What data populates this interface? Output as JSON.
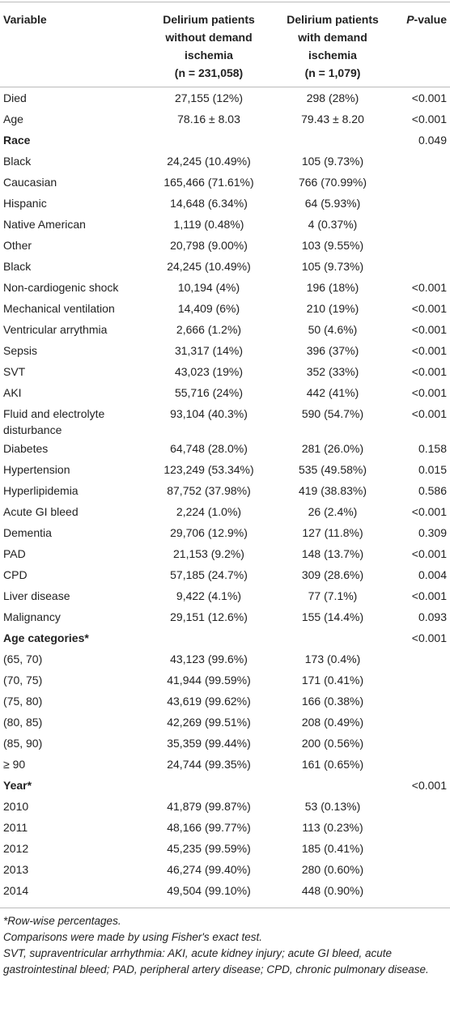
{
  "table": {
    "columns": [
      [
        "Variable"
      ],
      [
        "Delirium patients",
        "without demand",
        "ischemia",
        "(n = 231,058)"
      ],
      [
        "Delirium patients",
        "with demand",
        "ischemia",
        "(n = 1,079)"
      ],
      [
        "P-value"
      ]
    ],
    "rows": [
      {
        "variable": "Died",
        "without": "27,155 (12%)",
        "with": "298 (28%)",
        "p_value": "<0.001"
      },
      {
        "variable": "Age",
        "without": "78.16 ± 8.03",
        "with": "79.43 ± 8.20",
        "p_value": "<0.001"
      },
      {
        "heading": "Race",
        "p_value": "0.049"
      },
      {
        "variable": "Black",
        "without": "24,245 (10.49%)",
        "with": "105 (9.73%)"
      },
      {
        "variable": "Caucasian",
        "without": "165,466 (71.61%)",
        "with": "766 (70.99%)"
      },
      {
        "variable": "Hispanic",
        "without": "14,648 (6.34%)",
        "with": "64 (5.93%)"
      },
      {
        "variable": "Native American",
        "without": "1,119 (0.48%)",
        "with": "4 (0.37%)"
      },
      {
        "variable": "Other",
        "without": "20,798 (9.00%)",
        "with": "103 (9.55%)"
      },
      {
        "variable": "Black",
        "without": "24,245 (10.49%)",
        "with": "105 (9.73%)"
      },
      {
        "variable": "Non-cardiogenic shock",
        "without": "10,194 (4%)",
        "with": "196 (18%)",
        "p_value": "<0.001"
      },
      {
        "variable": "Mechanical ventilation",
        "without": "14,409 (6%)",
        "with": "210 (19%)",
        "p_value": "<0.001"
      },
      {
        "variable": "Ventricular arrythmia",
        "without": "2,666 (1.2%)",
        "with": "50 (4.6%)",
        "p_value": "<0.001"
      },
      {
        "variable": "Sepsis",
        "without": "31,317 (14%)",
        "with": "396 (37%)",
        "p_value": "<0.001"
      },
      {
        "variable": "SVT",
        "without": "43,023 (19%)",
        "with": "352 (33%)",
        "p_value": "<0.001"
      },
      {
        "variable": "AKI",
        "without": "55,716 (24%)",
        "with": "442 (41%)",
        "p_value": "<0.001"
      },
      {
        "variable": "Fluid and electrolyte disturbance",
        "without": "93,104 (40.3%)",
        "with": "590 (54.7%)",
        "p_value": "<0.001"
      },
      {
        "variable": "Diabetes",
        "without": "64,748 (28.0%)",
        "with": "281 (26.0%)",
        "p_value": "0.158"
      },
      {
        "variable": "Hypertension",
        "without": "123,249 (53.34%)",
        "with": "535 (49.58%)",
        "p_value": "0.015"
      },
      {
        "variable": "Hyperlipidemia",
        "without": "87,752 (37.98%)",
        "with": "419 (38.83%)",
        "p_value": "0.586"
      },
      {
        "variable": "Acute GI bleed",
        "without": "2,224 (1.0%)",
        "with": "26 (2.4%)",
        "p_value": "<0.001"
      },
      {
        "variable": "Dementia",
        "without": "29,706 (12.9%)",
        "with": "127 (11.8%)",
        "p_value": "0.309"
      },
      {
        "variable": "PAD",
        "without": "21,153 (9.2%)",
        "with": "148 (13.7%)",
        "p_value": "<0.001"
      },
      {
        "variable": "CPD",
        "without": "57,185 (24.7%)",
        "with": "309 (28.6%)",
        "p_value": "0.004"
      },
      {
        "variable": "Liver disease",
        "without": "9,422 (4.1%)",
        "with": "77 (7.1%)",
        "p_value": "<0.001"
      },
      {
        "variable": "Malignancy",
        "without": "29,151 (12.6%)",
        "with": "155 (14.4%)",
        "p_value": "0.093"
      },
      {
        "heading": "Age categories*",
        "p_value": "<0.001"
      },
      {
        "variable": "(65, 70)",
        "without": "43,123 (99.6%)",
        "with": "173 (0.4%)"
      },
      {
        "variable": "(70, 75)",
        "without": "41,944 (99.59%)",
        "with": "171 (0.41%)"
      },
      {
        "variable": "(75, 80)",
        "without": "43,619 (99.62%)",
        "with": "166 (0.38%)"
      },
      {
        "variable": "(80, 85)",
        "without": "42,269 (99.51%)",
        "with": "208 (0.49%)"
      },
      {
        "variable": "(85, 90)",
        "without": "35,359 (99.44%)",
        "with": "200 (0.56%)"
      },
      {
        "variable": "≥ 90",
        "without": "24,744 (99.35%)",
        "with": "161 (0.65%)"
      },
      {
        "heading": "Year*",
        "p_value": "<0.001"
      },
      {
        "variable": "2010",
        "without": "41,879 (99.87%)",
        "with": "53 (0.13%)"
      },
      {
        "variable": "2011",
        "without": "48,166 (99.77%)",
        "with": "113 (0.23%)"
      },
      {
        "variable": "2012",
        "without": "45,235 (99.59%)",
        "with": "185 (0.41%)"
      },
      {
        "variable": "2013",
        "without": "46,274 (99.40%)",
        "with": "280 (0.60%)"
      },
      {
        "variable": "2014",
        "without": "49,504 (99.10%)",
        "with": "448 (0.90%)"
      }
    ]
  },
  "footnotes": [
    "*Row-wise percentages.",
    "Comparisons were made by using Fisher's exact test.",
    "SVT, supraventricular arrhythmia: AKI, acute kidney injury; acute GI bleed, acute gastrointestinal bleed; PAD, peripheral artery disease; CPD, chronic pulmonary disease."
  ]
}
